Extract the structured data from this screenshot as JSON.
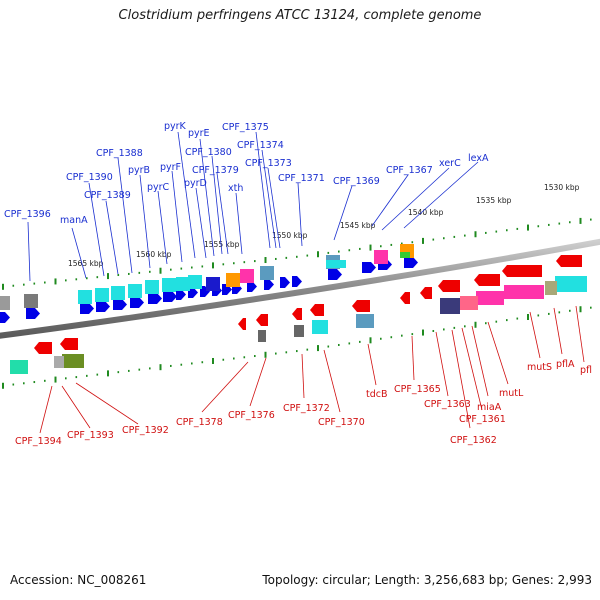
{
  "title": "Clostridium perfringens ATCC 13124, complete genome",
  "footer": {
    "accession": "Accession: NC_008261",
    "stats": "Topology: circular; Length: 3,256,683 bp; Genes: 2,993"
  },
  "ticks": [
    "1565 kbp",
    "1560 kbp",
    "1555 kbp",
    "1550 kbp",
    "1545 kbp",
    "1540 kbp",
    "1535 kbp",
    "1530 kbp"
  ],
  "forward_labels": [
    "CPF_1396",
    "manA",
    "CPF_1390",
    "CPF_1389",
    "CPF_1388",
    "pyrB",
    "pyrC",
    "pyrF",
    "pyrK",
    "pyrD",
    "pyrE",
    "CPF_1380",
    "CPF_1379",
    "xth",
    "CPF_1375",
    "CPF_1374",
    "CPF_1373",
    "CPF_1371",
    "CPF_1369",
    "CPF_1367",
    "xerC",
    "lexA"
  ],
  "reverse_labels": [
    "CPF_1394",
    "CPF_1393",
    "CPF_1392",
    "CPF_1378",
    "CPF_1376",
    "CPF_1372",
    "CPF_1370",
    "tdcB",
    "CPF_1365",
    "CPF_1363",
    "CPF_1362",
    "CPF_1361",
    "miaA",
    "mutL",
    "mutS",
    "pflA",
    "pfl"
  ],
  "colors": {
    "forward_gene": "#0000e6",
    "forward_label": "#1a2fd0",
    "reverse_gene": "#ee0000",
    "reverse_label": "#d01010",
    "backbone": "#7a7a7a",
    "tick": "#1f8a1f",
    "cyan": "#22e0e0",
    "magenta": "#ff33aa",
    "grey": "#666666"
  }
}
